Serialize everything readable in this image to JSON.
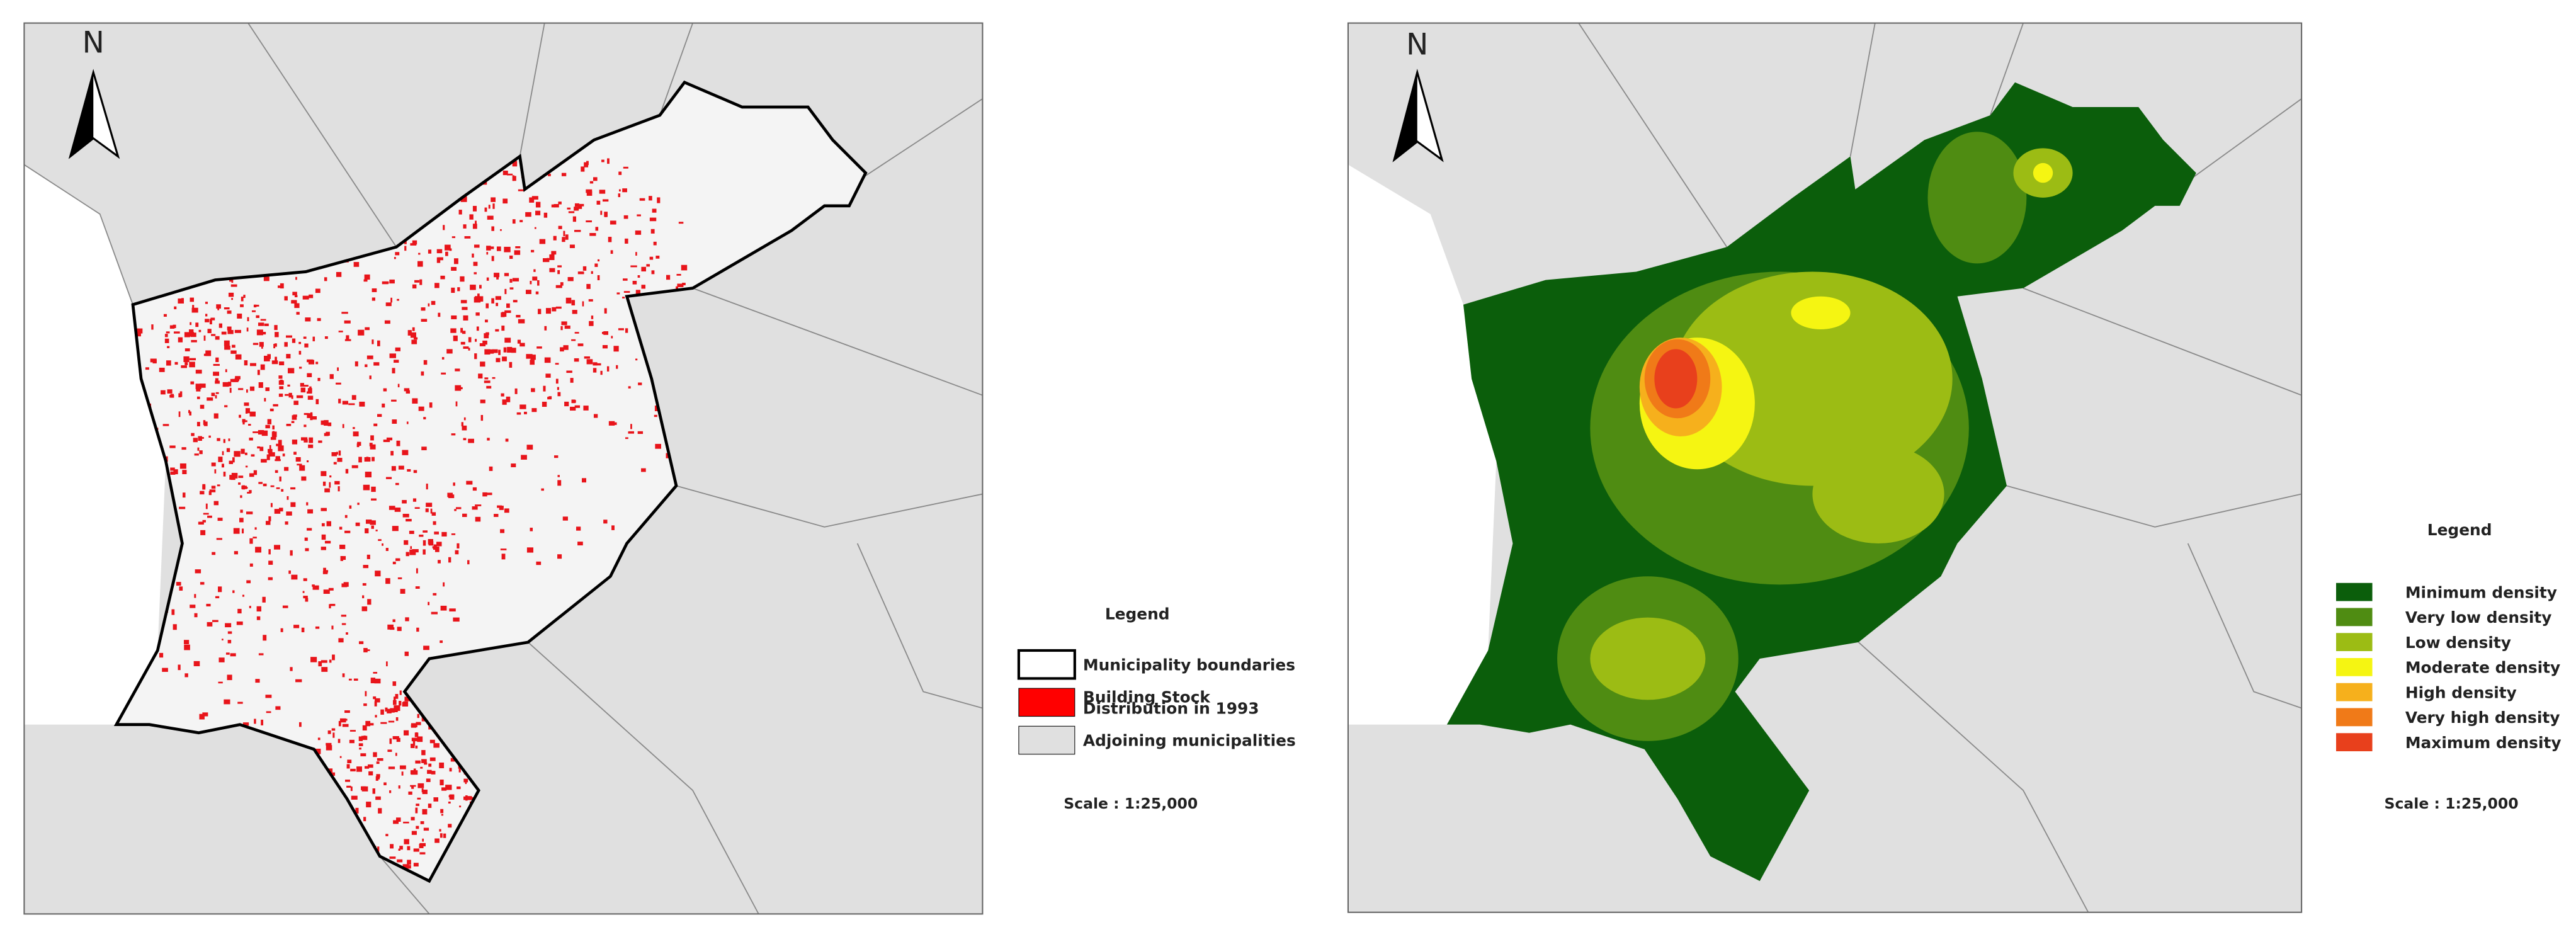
{
  "maps": [
    {
      "north": "N",
      "legend_title": "Legend",
      "legend": [
        {
          "lines": [
            "Municipality boundaries"
          ],
          "color": "#ffffff"
        },
        {
          "lines": [
            "Building Stock",
            "Distribution in 1993"
          ],
          "color": "#ff0000"
        },
        {
          "lines": [
            "Adjoining municipalities"
          ],
          "color": "#e0e0e0"
        }
      ],
      "scale": "Scale : 1:25,000"
    },
    {
      "north": "N",
      "legend_title": "Legend",
      "legend": [
        {
          "lines": [
            "Minimum density"
          ],
          "color": "#0b5e0b"
        },
        {
          "lines": [
            "Very low density"
          ],
          "color": "#4f8c12"
        },
        {
          "lines": [
            "Low density"
          ],
          "color": "#9cbc14"
        },
        {
          "lines": [
            "Moderate density"
          ],
          "color": "#f5f512"
        },
        {
          "lines": [
            "High density"
          ],
          "color": "#f6b01c"
        },
        {
          "lines": [
            "Very high density"
          ],
          "color": "#f07a18"
        },
        {
          "lines": [
            "Maximum density"
          ],
          "color": "#e8401c"
        }
      ],
      "scale": "Scale : 1:25,000"
    }
  ]
}
